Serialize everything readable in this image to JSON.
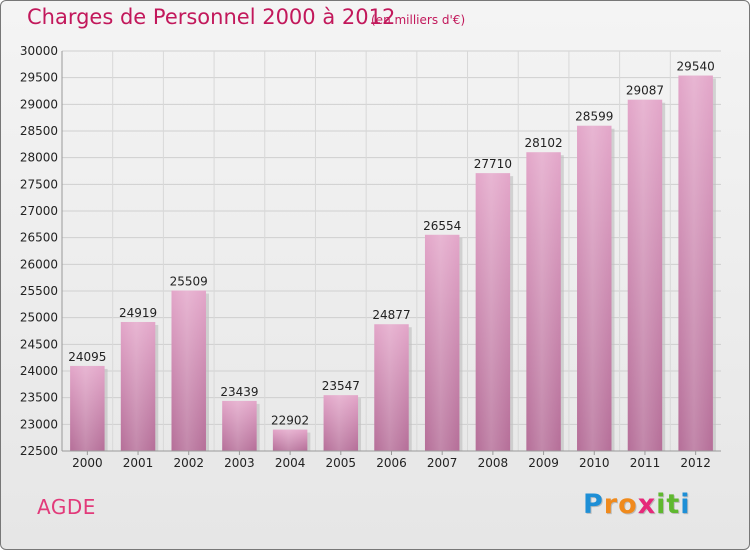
{
  "chart_data": {
    "type": "bar",
    "title": "Charges de Personnel 2000 à 2012",
    "subtitle": "(en milliers d'€)",
    "categories": [
      "2000",
      "2001",
      "2002",
      "2003",
      "2004",
      "2005",
      "2006",
      "2007",
      "2008",
      "2009",
      "2010",
      "2011",
      "2012"
    ],
    "values": [
      24095,
      24919,
      25509,
      23439,
      22902,
      23547,
      24877,
      26554,
      27710,
      28102,
      28599,
      29087,
      29540
    ],
    "ylim": [
      22500,
      30000
    ],
    "yticks": [
      22500,
      23000,
      23500,
      24000,
      24500,
      25000,
      25500,
      26000,
      26500,
      27000,
      27500,
      28000,
      28500,
      29000,
      29500,
      30000
    ],
    "grid": true,
    "bar_color": "#d98bb6",
    "xlabel": "",
    "ylabel": ""
  },
  "commune": "AGDE",
  "logo": {
    "letters": [
      {
        "char": "P",
        "color": "#1e8fd6"
      },
      {
        "char": "r",
        "color": "#f08a1c"
      },
      {
        "char": "o",
        "color": "#f08a1c"
      },
      {
        "char": "x",
        "color": "#e6287a"
      },
      {
        "char": "i",
        "color": "#5fb82f"
      },
      {
        "char": "t",
        "color": "#5fb82f"
      },
      {
        "char": "i",
        "color": "#1e8fd6"
      }
    ]
  }
}
